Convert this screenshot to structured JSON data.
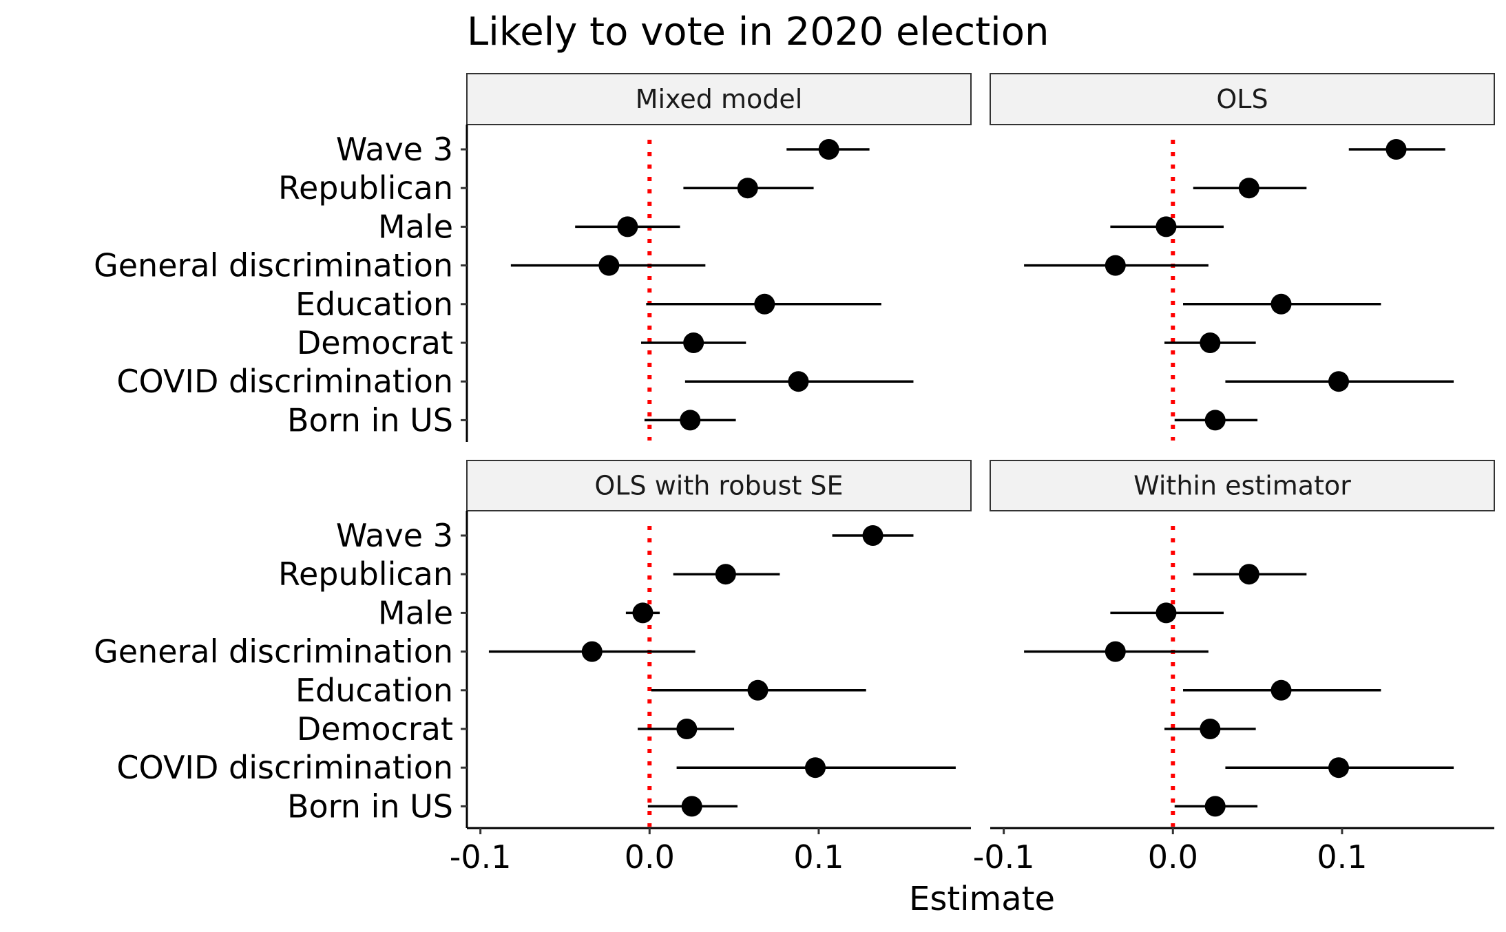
{
  "chart_data": {
    "type": "scatter",
    "subtype": "coefficient-plot",
    "title": "Likely to vote in 2020 election",
    "xlabel": "Estimate",
    "ylabel": "",
    "xlim": [
      -0.108,
      0.19
    ],
    "x_ticks": [
      -0.1,
      0.0,
      0.1
    ],
    "x_tick_labels": [
      "-0.1",
      "0.0",
      "0.1"
    ],
    "reference_line": {
      "x": 0,
      "style": "dotted",
      "color": "#ff0000"
    },
    "categories": [
      "Wave 3",
      "Republican",
      "Male",
      "General discrimination",
      "Education",
      "Democrat",
      "COVID discrimination",
      "Born in US"
    ],
    "grid": false,
    "legend": "none",
    "point_color": "#000000",
    "panels": [
      {
        "name": "Mixed model",
        "estimates": [
          0.106,
          0.058,
          -0.013,
          -0.024,
          0.068,
          0.026,
          0.088,
          0.024
        ],
        "ci_low": [
          0.081,
          0.02,
          -0.044,
          -0.082,
          -0.002,
          -0.005,
          0.021,
          -0.003
        ],
        "ci_high": [
          0.13,
          0.097,
          0.018,
          0.033,
          0.137,
          0.057,
          0.156,
          0.051
        ]
      },
      {
        "name": "OLS",
        "estimates": [
          0.132,
          0.045,
          -0.004,
          -0.034,
          0.064,
          0.022,
          0.098,
          0.025
        ],
        "ci_low": [
          0.104,
          0.012,
          -0.037,
          -0.088,
          0.006,
          -0.005,
          0.031,
          0.001
        ],
        "ci_high": [
          0.161,
          0.079,
          0.03,
          0.021,
          0.123,
          0.049,
          0.166,
          0.05
        ]
      },
      {
        "name": "OLS with robust SE",
        "estimates": [
          0.132,
          0.045,
          -0.004,
          -0.034,
          0.064,
          0.022,
          0.098,
          0.025
        ],
        "ci_low": [
          0.108,
          0.014,
          -0.014,
          -0.095,
          0.001,
          -0.007,
          0.016,
          -0.001
        ],
        "ci_high": [
          0.156,
          0.077,
          0.006,
          0.027,
          0.128,
          0.05,
          0.181,
          0.052
        ]
      },
      {
        "name": "Within estimator",
        "estimates": [
          null,
          0.045,
          -0.004,
          -0.034,
          0.064,
          0.022,
          0.098,
          0.025
        ],
        "ci_low": [
          null,
          0.012,
          -0.037,
          -0.088,
          0.006,
          -0.005,
          0.031,
          0.001
        ],
        "ci_high": [
          null,
          0.079,
          0.03,
          0.021,
          0.123,
          0.049,
          0.166,
          0.05
        ]
      }
    ]
  }
}
